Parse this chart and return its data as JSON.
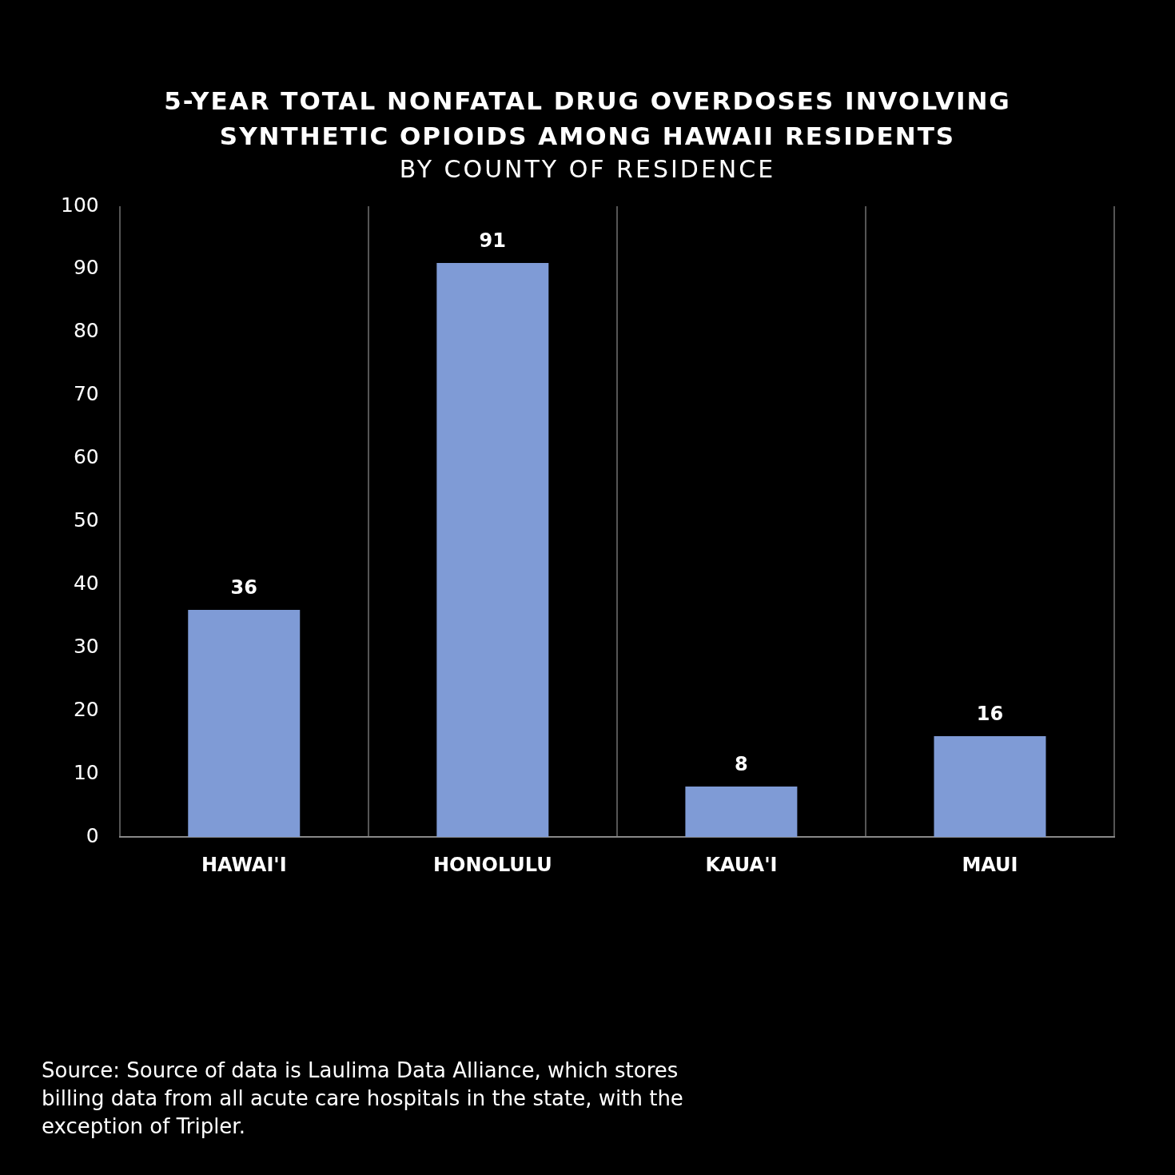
{
  "chart_data": {
    "type": "bar",
    "title": "5-YEAR TOTAL NONFATAL DRUG OVERDOSES INVOLVING SYNTHETIC OPIOIDS AMONG HAWAII RESIDENTS",
    "subtitle": "BY COUNTY OF RESIDENCE",
    "categories": [
      "HAWAI'I",
      "HONOLULU",
      "KAUA'I",
      "MAUI"
    ],
    "values": [
      36,
      91,
      8,
      16
    ],
    "color": "#7f9bd6",
    "ylim": [
      0,
      100
    ],
    "yticks": [
      0,
      10,
      20,
      30,
      40,
      50,
      60,
      70,
      80,
      90,
      100
    ],
    "grid": "x",
    "data_labels": true,
    "legend": false,
    "annotations": [
      "Source: Source of data is Laulima Data Alliance, which stores billing data from all acute care hospitals in the state, with the exception of Tripler."
    ]
  }
}
